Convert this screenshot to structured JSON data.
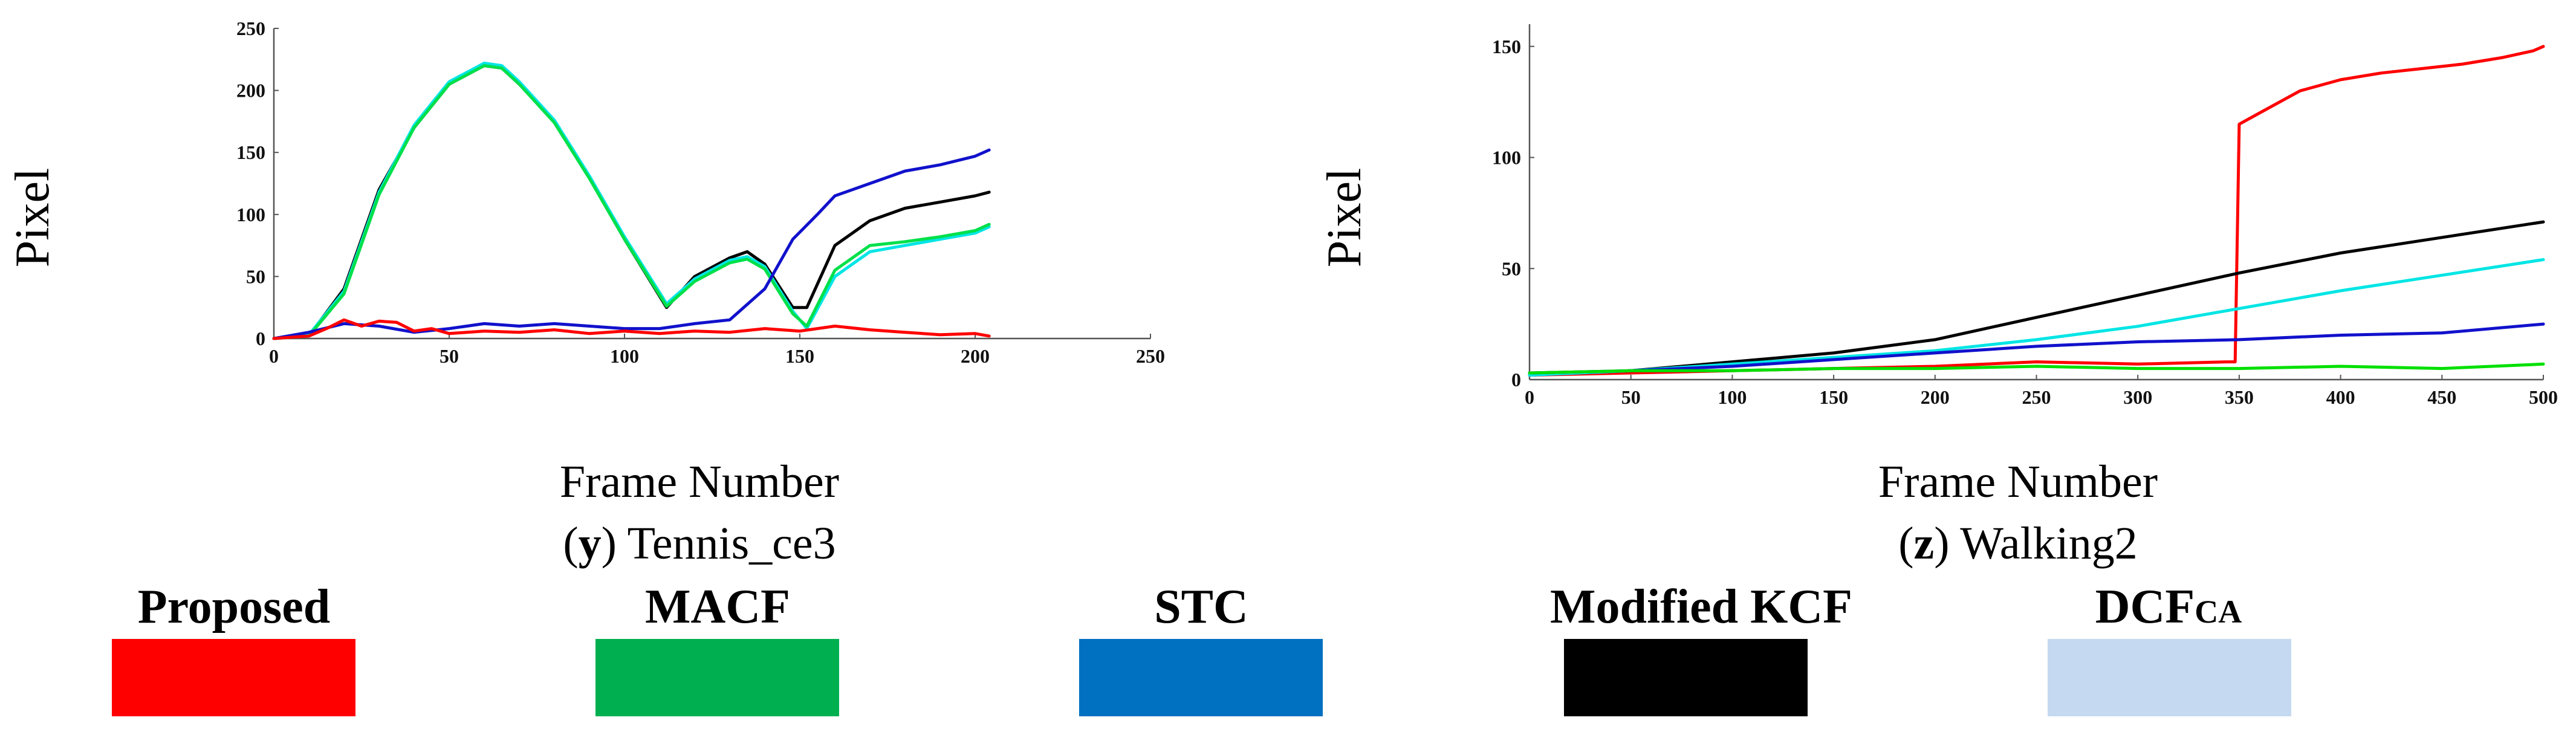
{
  "chart_data": [
    {
      "type": "line",
      "panel": "y",
      "caption_letter": "y",
      "caption_text": "Tennis_ce3",
      "xlabel": "Frame Number",
      "ylabel": "Pixel",
      "xlim": [
        0,
        250
      ],
      "ylim": [
        0,
        250
      ],
      "xticks": [
        "0",
        "50",
        "100",
        "150",
        "200",
        "250"
      ],
      "yticks": [
        "0",
        "50",
        "100",
        "150",
        "200",
        "250"
      ],
      "series": [
        {
          "name": "Modified KCF",
          "color": "#000000",
          "x": [
            0,
            10,
            20,
            30,
            40,
            50,
            60,
            65,
            70,
            80,
            90,
            100,
            112,
            120,
            130,
            135,
            140,
            148,
            152,
            160,
            170,
            180,
            190,
            200,
            204
          ],
          "y": [
            0,
            2,
            40,
            120,
            170,
            205,
            220,
            218,
            205,
            175,
            130,
            80,
            25,
            50,
            65,
            70,
            60,
            25,
            25,
            75,
            95,
            105,
            110,
            115,
            118
          ]
        },
        {
          "name": "DCF_CA",
          "color": "#00e5e5",
          "x": [
            0,
            10,
            20,
            30,
            40,
            50,
            60,
            65,
            70,
            80,
            90,
            100,
            112,
            120,
            130,
            135,
            140,
            148,
            152,
            160,
            170,
            180,
            190,
            200,
            204
          ],
          "y": [
            0,
            3,
            38,
            118,
            172,
            207,
            222,
            220,
            207,
            176,
            131,
            82,
            28,
            48,
            63,
            66,
            58,
            22,
            8,
            50,
            70,
            75,
            80,
            85,
            90
          ]
        },
        {
          "name": "MACF",
          "color": "#00e04a",
          "x": [
            0,
            10,
            20,
            30,
            40,
            50,
            60,
            65,
            70,
            80,
            90,
            100,
            112,
            120,
            130,
            135,
            140,
            148,
            152,
            160,
            170,
            180,
            190,
            200,
            204
          ],
          "y": [
            0,
            2,
            36,
            116,
            170,
            205,
            220,
            218,
            205,
            174,
            129,
            80,
            26,
            46,
            61,
            64,
            56,
            20,
            10,
            55,
            75,
            78,
            82,
            87,
            92
          ]
        },
        {
          "name": "STC",
          "color": "#1111cc",
          "x": [
            0,
            10,
            20,
            30,
            40,
            50,
            60,
            70,
            80,
            90,
            100,
            110,
            120,
            130,
            140,
            148,
            155,
            160,
            170,
            180,
            190,
            200,
            204
          ],
          "y": [
            0,
            5,
            12,
            10,
            5,
            8,
            12,
            10,
            12,
            10,
            8,
            8,
            12,
            15,
            40,
            80,
            100,
            115,
            125,
            135,
            140,
            147,
            152
          ]
        },
        {
          "name": "Proposed",
          "color": "#ff0000",
          "x": [
            0,
            10,
            15,
            20,
            25,
            30,
            35,
            40,
            45,
            50,
            60,
            70,
            80,
            90,
            100,
            110,
            120,
            130,
            140,
            150,
            160,
            170,
            180,
            190,
            200,
            204
          ],
          "y": [
            0,
            2,
            8,
            15,
            10,
            14,
            13,
            6,
            8,
            4,
            6,
            5,
            7,
            4,
            6,
            4,
            6,
            5,
            8,
            6,
            10,
            7,
            5,
            3,
            4,
            2
          ]
        }
      ]
    },
    {
      "type": "line",
      "panel": "z",
      "caption_letter": "z",
      "caption_text": "Walking2",
      "xlabel": "Frame Number",
      "ylabel": "Pixel",
      "xlim": [
        0,
        500
      ],
      "ylim": [
        0,
        160
      ],
      "xticks": [
        "0",
        "50",
        "100",
        "150",
        "200",
        "250",
        "300",
        "350",
        "400",
        "450",
        "500"
      ],
      "yticks": [
        "0",
        "50",
        "100",
        "150"
      ],
      "series": [
        {
          "name": "Proposed",
          "color": "#ff0000",
          "x": [
            0,
            50,
            100,
            150,
            200,
            250,
            300,
            345,
            348,
            350,
            360,
            380,
            400,
            420,
            440,
            460,
            480,
            495,
            500
          ],
          "y": [
            2,
            3,
            4,
            5,
            6,
            8,
            7,
            8,
            8,
            115,
            120,
            130,
            135,
            138,
            140,
            142,
            145,
            148,
            150
          ]
        },
        {
          "name": "Modified KCF",
          "color": "#000000",
          "x": [
            0,
            50,
            100,
            150,
            200,
            250,
            300,
            350,
            400,
            450,
            500
          ],
          "y": [
            2,
            4,
            8,
            12,
            18,
            28,
            38,
            48,
            57,
            64,
            71
          ]
        },
        {
          "name": "DCF_CA",
          "color": "#00e5e5",
          "x": [
            0,
            50,
            100,
            150,
            200,
            250,
            300,
            350,
            400,
            450,
            500
          ],
          "y": [
            2,
            4,
            7,
            10,
            13,
            18,
            24,
            32,
            40,
            47,
            54
          ]
        },
        {
          "name": "STC",
          "color": "#1111cc",
          "x": [
            0,
            50,
            100,
            150,
            200,
            250,
            300,
            350,
            400,
            450,
            500
          ],
          "y": [
            3,
            4,
            6,
            9,
            12,
            15,
            17,
            18,
            20,
            21,
            25
          ]
        },
        {
          "name": "MACF",
          "color": "#00e000",
          "x": [
            0,
            50,
            100,
            150,
            200,
            250,
            300,
            350,
            400,
            450,
            500
          ],
          "y": [
            3,
            4,
            4,
            5,
            5,
            6,
            5,
            5,
            6,
            5,
            7
          ]
        }
      ]
    }
  ],
  "legend": {
    "items": [
      {
        "label": "Proposed",
        "color": "#ff0000"
      },
      {
        "label": "MACF",
        "color": "#00b050"
      },
      {
        "label": "STC",
        "color": "#0070c0"
      },
      {
        "label": "Modified KCF",
        "color": "#000000"
      },
      {
        "label": "DCF",
        "label_sub": "CA",
        "color": "#c5d9f1"
      }
    ]
  }
}
